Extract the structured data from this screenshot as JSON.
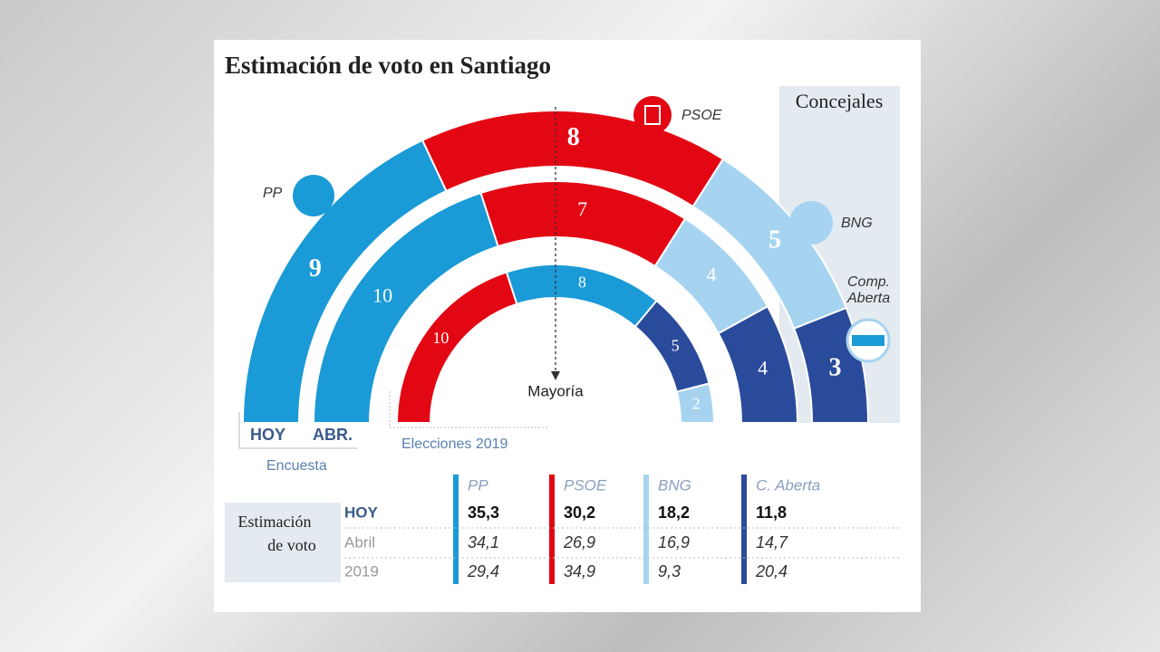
{
  "chart_data": {
    "type": "parliament",
    "title": "Estimación de voto en Santiago",
    "side_title": "Concejales",
    "rings": [
      {
        "label": "HOY",
        "values": [
          9,
          8,
          5,
          3
        ],
        "colors": [
          "#1a9ad6",
          "#e30613",
          "#a6d4f0",
          "#2a4b9b"
        ]
      },
      {
        "label": "ABR.",
        "values": [
          10,
          7,
          4,
          4
        ],
        "colors": [
          "#1a9ad6",
          "#e30613",
          "#a6d4f0",
          "#2a4b9b"
        ]
      },
      {
        "label": "Elecciones 2019",
        "values": [
          10,
          8,
          5,
          2
        ],
        "colors": [
          "#e30613",
          "#1a9ad6",
          "#2a4b9b",
          "#a6d4f0"
        ]
      }
    ],
    "survey_label": "Encuesta",
    "majority_label": "Mayoría",
    "party_labels": {
      "pp": "PP",
      "psoe": "PSOE",
      "bng": "BNG",
      "ca": [
        "Comp.",
        "Aberta"
      ]
    }
  },
  "table": {
    "row_header": [
      "Estimación",
      "de voto"
    ],
    "columns": [
      "PP",
      "PSOE",
      "BNG",
      "C. Aberta"
    ],
    "column_colors": [
      "#1a9ad6",
      "#e30613",
      "#a6d4f0",
      "#2a4b9b"
    ],
    "rows": [
      {
        "label": "HOY",
        "values": [
          "35,3",
          "30,2",
          "18,2",
          "11,8"
        ]
      },
      {
        "label": "Abril",
        "values": [
          "34,1",
          "26,9",
          "16,9",
          "14,7"
        ]
      },
      {
        "label": "2019",
        "values": [
          "29,4",
          "34,9",
          "9,3",
          "20,4"
        ]
      }
    ]
  }
}
